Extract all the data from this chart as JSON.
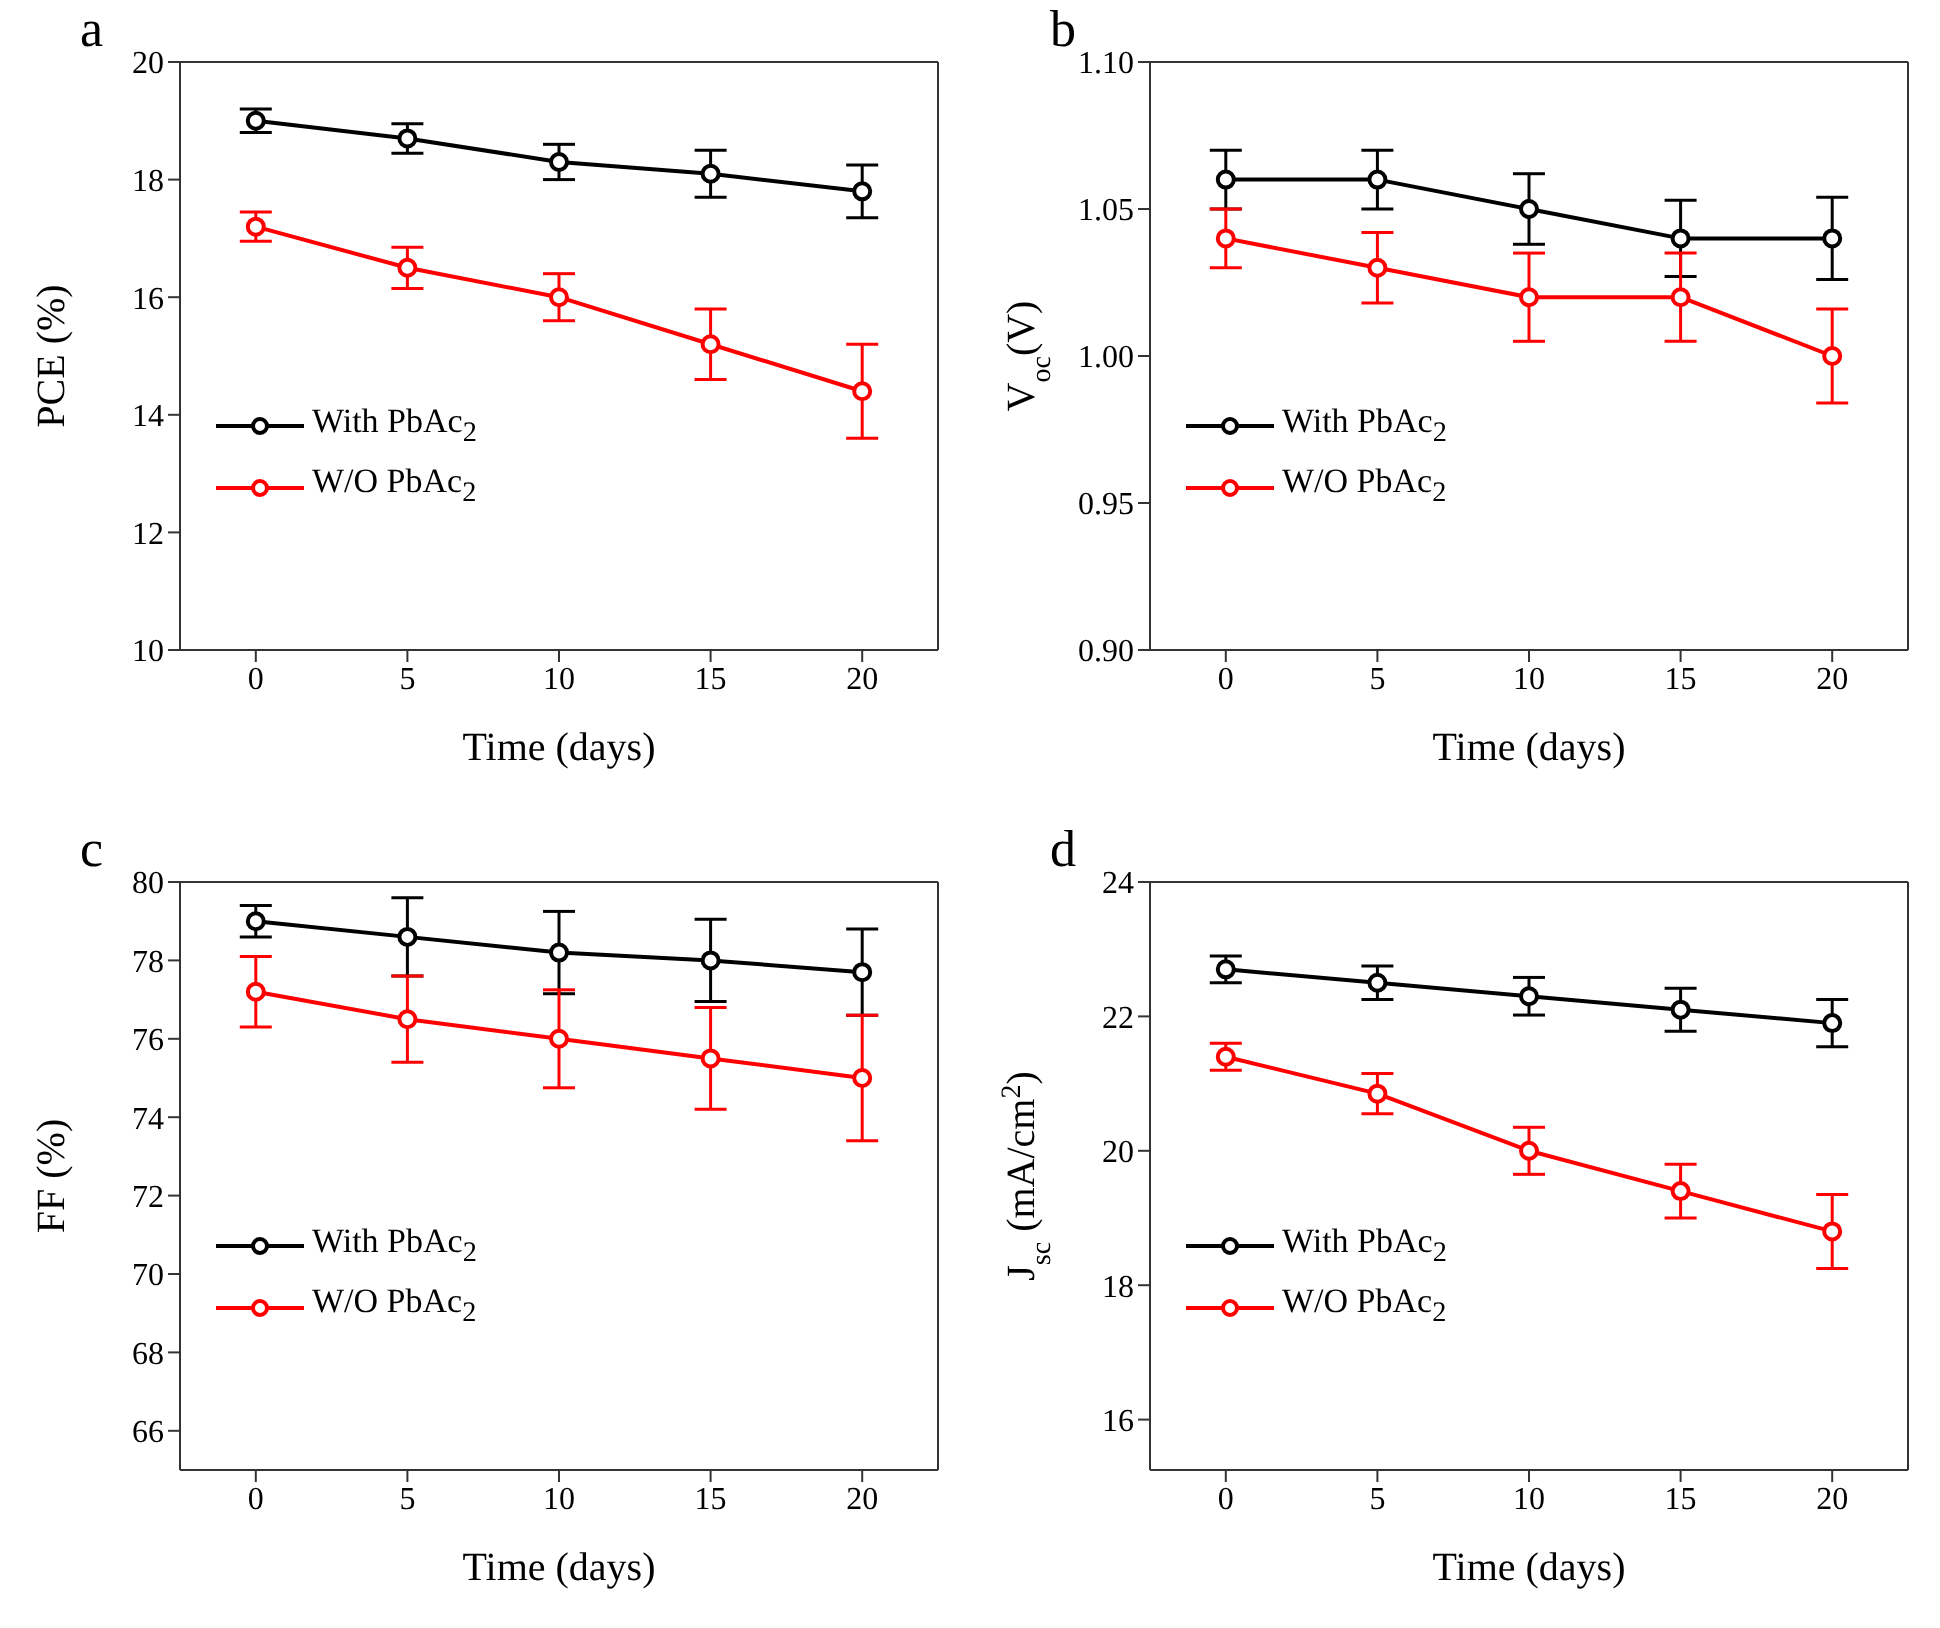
{
  "chart_data": [
    {
      "type": "line",
      "title": "a",
      "xlabel": "Time (days)",
      "ylabel": "PCE (%)",
      "x": [
        0,
        5,
        10,
        15,
        20
      ],
      "xlim": [
        -2.5,
        22.5
      ],
      "xticks": [
        0,
        5,
        10,
        15,
        20
      ],
      "ylim": [
        10,
        20
      ],
      "yticks": [
        10,
        12,
        14,
        16,
        18,
        20
      ],
      "marker": "circle",
      "legend": "left",
      "grid": false,
      "series": [
        {
          "name": "With PbAc$_{2}$",
          "color": "#000000",
          "values": [
            19.0,
            18.7,
            18.3,
            18.1,
            17.8
          ],
          "errors": [
            0.2,
            0.25,
            0.3,
            0.4,
            0.45
          ]
        },
        {
          "name": "W/O PbAc$_{2}$",
          "color": "#ff0000",
          "values": [
            17.2,
            16.5,
            16.0,
            15.2,
            14.4
          ],
          "errors": [
            0.25,
            0.35,
            0.4,
            0.6,
            0.8
          ]
        }
      ]
    },
    {
      "type": "line",
      "title": "b",
      "xlabel": "Time (days)",
      "ylabel": "V$_{oc}$(V)",
      "x": [
        0,
        5,
        10,
        15,
        20
      ],
      "xlim": [
        -2.5,
        22.5
      ],
      "xticks": [
        0,
        5,
        10,
        15,
        20
      ],
      "ylim": [
        0.9,
        1.1
      ],
      "yticks": [
        {
          "value": 0.9,
          "label": "0.90"
        },
        0.95,
        {
          "value": 1.0,
          "label": "1.00"
        },
        1.05,
        {
          "value": 1.1,
          "label": "1.10"
        }
      ],
      "marker": "circle",
      "legend": "left",
      "grid": false,
      "series": [
        {
          "name": "With PbAc$_{2}$",
          "color": "#000000",
          "values": [
            1.06,
            1.06,
            1.05,
            1.04,
            1.04
          ],
          "errors": [
            0.01,
            0.01,
            0.012,
            0.013,
            0.014
          ]
        },
        {
          "name": "W/O PbAc$_{2}$",
          "color": "#ff0000",
          "values": [
            1.04,
            1.03,
            1.02,
            1.02,
            1.0
          ],
          "errors": [
            0.01,
            0.012,
            0.015,
            0.015,
            0.016
          ]
        }
      ]
    },
    {
      "type": "line",
      "title": "c",
      "xlabel": "Time (days)",
      "ylabel": "FF (%)",
      "x": [
        0,
        5,
        10,
        15,
        20
      ],
      "xlim": [
        -2.5,
        22.5
      ],
      "xticks": [
        0,
        5,
        10,
        15,
        20
      ],
      "ylim": [
        65,
        80
      ],
      "yticks": [
        66,
        68,
        70,
        72,
        74,
        76,
        78,
        80
      ],
      "marker": "circle",
      "legend": "left",
      "grid": false,
      "series": [
        {
          "name": "With PbAc$_{2}$",
          "color": "#000000",
          "values": [
            79.0,
            78.6,
            78.2,
            78.0,
            77.7
          ],
          "errors": [
            0.4,
            1.0,
            1.05,
            1.05,
            1.1
          ]
        },
        {
          "name": "W/O PbAc$_{2}$",
          "color": "#ff0000",
          "values": [
            77.2,
            76.5,
            76.0,
            75.5,
            75.0
          ],
          "errors": [
            0.9,
            1.1,
            1.25,
            1.3,
            1.6
          ]
        }
      ]
    },
    {
      "type": "line",
      "title": "d",
      "xlabel": "Time (days)",
      "ylabel": "J$_{sc}$ (mA/cm$^{2}$)",
      "x": [
        0,
        5,
        10,
        15,
        20
      ],
      "xlim": [
        -2.5,
        22.5
      ],
      "xticks": [
        0,
        5,
        10,
        15,
        20
      ],
      "ylim": [
        15.25,
        24
      ],
      "yticks": [
        16,
        18,
        20,
        22,
        24
      ],
      "marker": "circle",
      "legend": "left",
      "grid": false,
      "series": [
        {
          "name": "With PbAc$_{2}$",
          "color": "#000000",
          "values": [
            22.7,
            22.5,
            22.3,
            22.1,
            21.9
          ],
          "errors": [
            0.2,
            0.25,
            0.28,
            0.32,
            0.35
          ]
        },
        {
          "name": "W/O PbAc$_{2}$",
          "color": "#ff0000",
          "values": [
            21.4,
            20.85,
            20.0,
            19.4,
            18.8
          ],
          "errors": [
            0.2,
            0.3,
            0.35,
            0.4,
            0.55
          ]
        }
      ]
    }
  ]
}
